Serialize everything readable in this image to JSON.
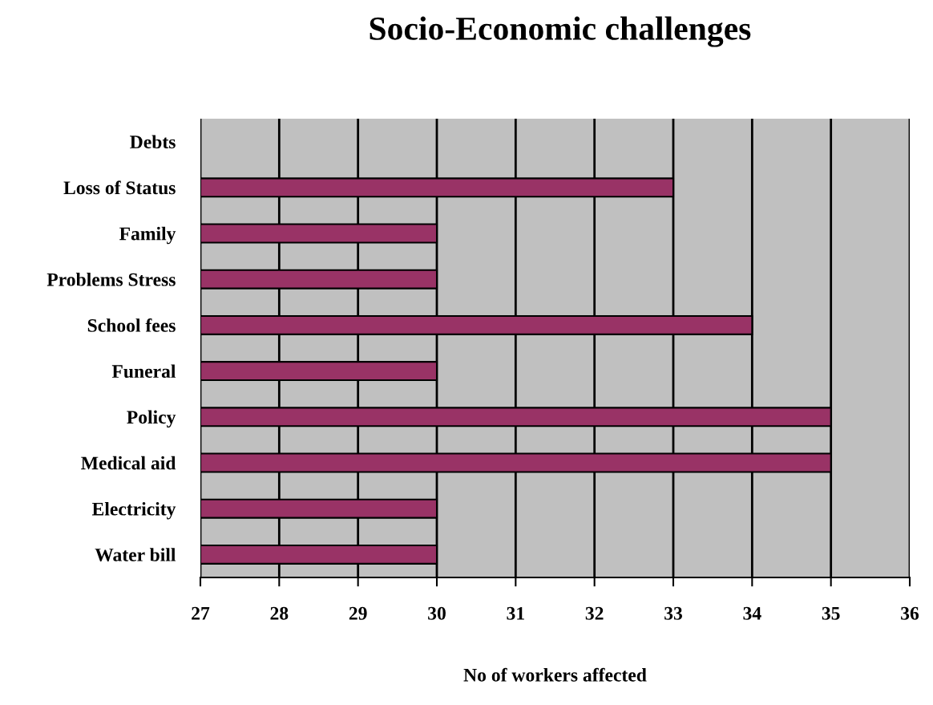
{
  "chart_data": {
    "type": "bar",
    "orientation": "horizontal",
    "title": "Socio-Economic challenges",
    "xlabel": "No of workers affected",
    "categories": [
      "Debts",
      "Loss of Status",
      "Family",
      "Problems Stress",
      "School fees",
      "Funeral",
      "Policy",
      "Medical aid",
      "Electricity",
      "Water bill"
    ],
    "values": [
      null,
      33,
      30,
      30,
      34,
      30,
      35,
      35,
      30,
      30
    ],
    "color": "#993366",
    "xlim": [
      27,
      36
    ],
    "xticks": [
      27,
      28,
      29,
      30,
      31,
      32,
      33,
      34,
      35,
      36
    ],
    "grid": "x"
  }
}
